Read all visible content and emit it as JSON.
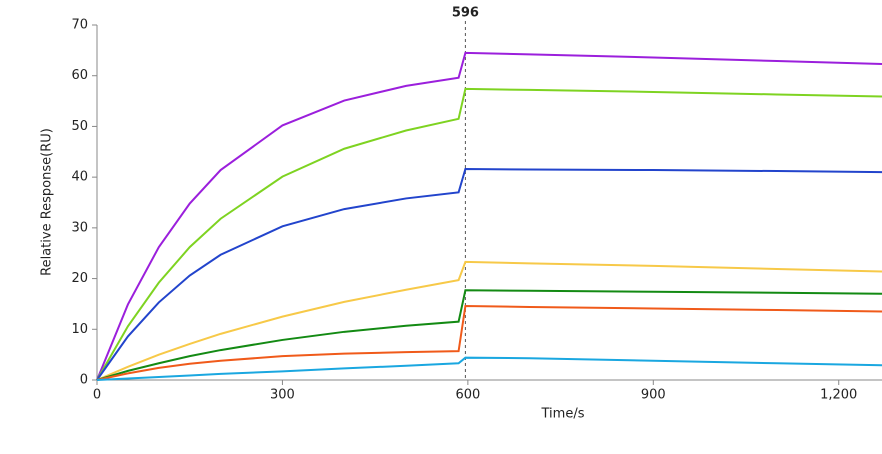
{
  "chart_data": {
    "type": "line",
    "xlabel": "Time/s",
    "ylabel": "Relative Response(RU)",
    "vline": 596,
    "x": [
      0,
      50,
      100,
      150,
      200,
      300,
      400,
      500,
      585,
      596,
      700,
      900,
      1100,
      1270
    ],
    "series": [
      {
        "color": "#9b1fdc",
        "values": [
          0,
          14.9,
          26.2,
          34.8,
          41.4,
          50.2,
          55.1,
          58.0,
          59.6,
          64.5,
          64.2,
          63.6,
          62.9,
          62.3
        ]
      },
      {
        "color": "#7ed321",
        "values": [
          0,
          10.6,
          19.2,
          26.2,
          31.8,
          40.1,
          45.6,
          49.2,
          51.5,
          57.4,
          57.2,
          56.8,
          56.3,
          55.9
        ]
      },
      {
        "color": "#2244cc",
        "values": [
          0,
          8.6,
          15.3,
          20.6,
          24.7,
          30.3,
          33.7,
          35.8,
          37.0,
          41.6,
          41.5,
          41.4,
          41.2,
          41.0
        ]
      },
      {
        "color": "#f7c948",
        "values": [
          0,
          2.6,
          5.0,
          7.1,
          9.1,
          12.5,
          15.4,
          17.8,
          19.7,
          23.3,
          23.0,
          22.5,
          21.9,
          21.4
        ]
      },
      {
        "color": "#138a13",
        "values": [
          0,
          1.8,
          3.3,
          4.7,
          5.9,
          7.9,
          9.5,
          10.7,
          11.5,
          17.7,
          17.6,
          17.4,
          17.2,
          17.0
        ]
      },
      {
        "color": "#f05a1a",
        "values": [
          0,
          1.3,
          2.4,
          3.2,
          3.8,
          4.7,
          5.2,
          5.5,
          5.7,
          14.6,
          14.4,
          14.1,
          13.8,
          13.5
        ]
      },
      {
        "color": "#1aa7e0",
        "values": [
          0,
          0.3,
          0.6,
          0.9,
          1.2,
          1.7,
          2.3,
          2.8,
          3.3,
          4.4,
          4.3,
          3.8,
          3.3,
          2.9
        ]
      }
    ],
    "xlim": [
      0,
      1270
    ],
    "xticks": [
      0,
      300,
      600,
      900,
      {
        "value": 1200,
        "label": "1,200"
      }
    ],
    "ylim": [
      0,
      70
    ],
    "yticks": [
      0,
      10,
      20,
      30,
      40,
      50,
      60,
      70
    ]
  }
}
